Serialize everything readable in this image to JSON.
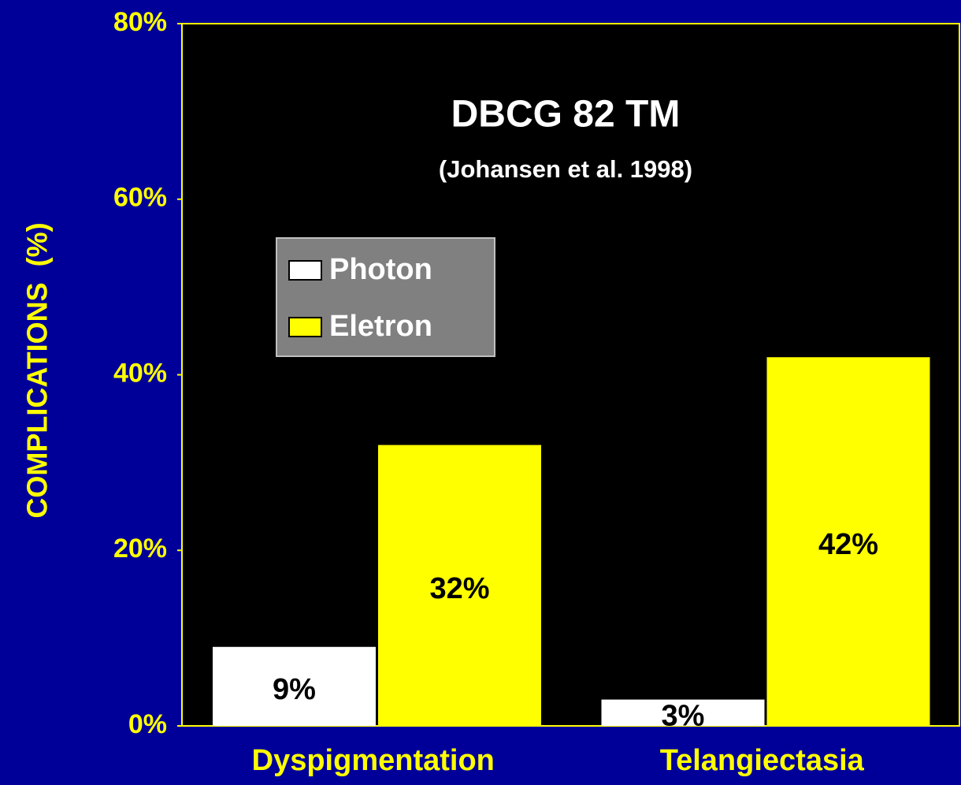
{
  "chart_data": {
    "type": "bar",
    "title": "DBCG 82 TM",
    "subtitle": "(Johansen et al. 1998)",
    "y_label": "COMPLICATIONS  (%)",
    "categories": [
      "Dyspigmentation",
      "Telangiectasia"
    ],
    "series": [
      {
        "name": "Photon",
        "color": "#ffffff",
        "values": [
          9,
          3
        ],
        "value_labels": [
          "9%",
          "3%"
        ]
      },
      {
        "name": "Eletron",
        "color": "#ffff00",
        "values": [
          32,
          42
        ],
        "value_labels": [
          "32%",
          "42%"
        ]
      }
    ],
    "ylim": [
      0,
      80
    ],
    "yticks": [
      {
        "value": 0,
        "label": "0%"
      },
      {
        "value": 20,
        "label": "20%"
      },
      {
        "value": 40,
        "label": "40%"
      },
      {
        "value": 60,
        "label": "60%"
      },
      {
        "value": 80,
        "label": "80%"
      }
    ],
    "grid": false
  }
}
